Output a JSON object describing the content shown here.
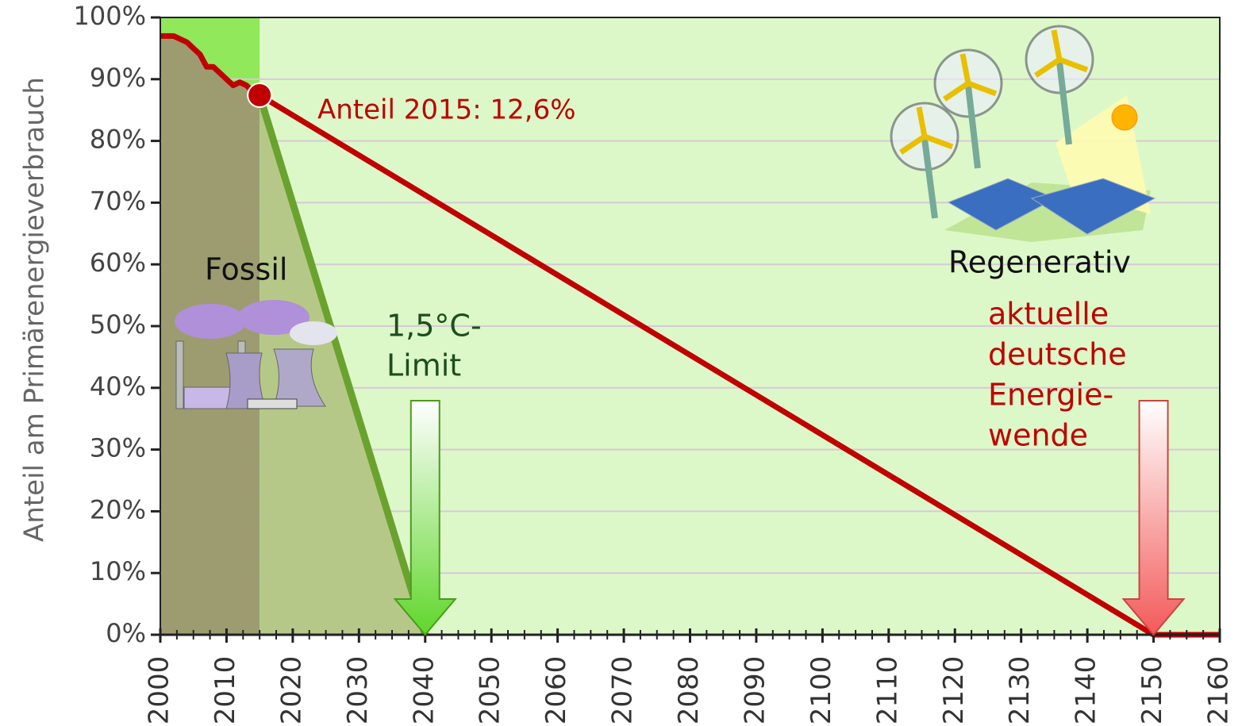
{
  "chart_data": {
    "type": "line",
    "ylabel": "Anteil am Primärenergieverbrauch",
    "xlim": [
      2000,
      2160
    ],
    "ylim": [
      0,
      100
    ],
    "xticks": [
      2000,
      2010,
      2020,
      2030,
      2040,
      2050,
      2060,
      2070,
      2080,
      2090,
      2100,
      2110,
      2120,
      2130,
      2140,
      2150,
      2160
    ],
    "yticks": [
      {
        "value": 0,
        "label": "0%"
      },
      {
        "value": 10,
        "label": "10%"
      },
      {
        "value": 20,
        "label": "20%"
      },
      {
        "value": 30,
        "label": "30%"
      },
      {
        "value": 40,
        "label": "40%"
      },
      {
        "value": 50,
        "label": "50%"
      },
      {
        "value": 60,
        "label": "60%"
      },
      {
        "value": 70,
        "label": "70%"
      },
      {
        "value": 80,
        "label": "80%"
      },
      {
        "value": 90,
        "label": "90%"
      },
      {
        "value": 100,
        "label": "100%"
      }
    ],
    "grid": true,
    "series": [
      {
        "color": "#c00000",
        "x": [
          2000,
          2002,
          2004,
          2006,
          2007,
          2008,
          2010,
          2011,
          2012,
          2013,
          2014,
          2015,
          2150,
          2160
        ],
        "values": [
          97,
          97,
          96,
          94,
          92,
          92,
          90,
          89,
          89.5,
          89,
          88,
          87.4,
          0,
          0
        ]
      },
      {
        "color": "#6aa22e",
        "x": [
          2015,
          2040
        ],
        "values": [
          87.4,
          0
        ]
      }
    ],
    "annotations": {
      "share": "Anteil 2015: 12,6%",
      "fossil": "Fossil",
      "renewable": "Regenerativ",
      "limit": [
        "1,5°C-",
        "Limit"
      ],
      "current": [
        "aktuelle",
        "deutsche",
        "Energie-",
        "wende"
      ]
    }
  }
}
